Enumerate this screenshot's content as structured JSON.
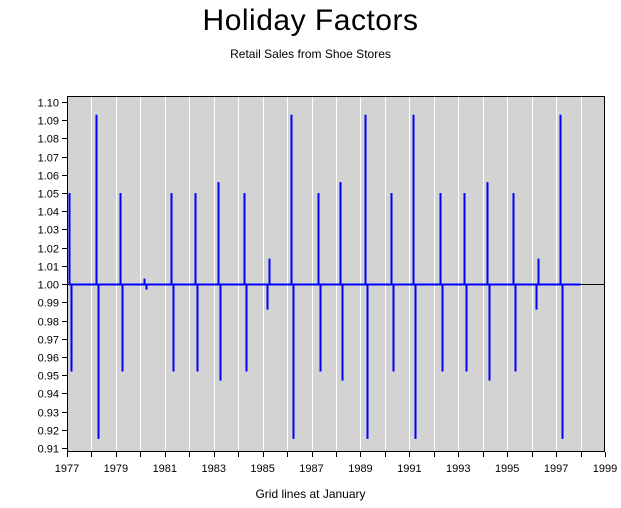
{
  "chart_data": {
    "type": "bar",
    "title": "Holiday Factors",
    "subtitle": "Retail Sales from Shoe Stores",
    "xlabel": "Grid lines at January",
    "ylabel": "",
    "xlim": [
      1977,
      1999
    ],
    "ylim": [
      0.91,
      1.1
    ],
    "reference_line": 1.0,
    "grid": true,
    "x_ticks": [
      "1977",
      "1979",
      "1981",
      "1983",
      "1985",
      "1987",
      "1989",
      "1991",
      "1993",
      "1995",
      "1997",
      "1999"
    ],
    "y_ticks": [
      "0.91",
      "0.92",
      "0.93",
      "0.94",
      "0.95",
      "0.96",
      "0.97",
      "0.98",
      "0.99",
      "1.00",
      "1.01",
      "1.02",
      "1.03",
      "1.04",
      "1.05",
      "1.06",
      "1.07",
      "1.08",
      "1.09",
      "1.10"
    ],
    "colors": {
      "series": "#0000ff",
      "plot_bg": "#d3d3d3",
      "grid": "#ffffff",
      "reference": "#000000"
    },
    "series": [
      {
        "values": [
          {
            "x": "1977-02",
            "y": 1.05
          },
          {
            "x": "1977-03",
            "y": 0.952
          },
          {
            "x": "1978-03",
            "y": 1.093
          },
          {
            "x": "1978-04",
            "y": 0.915
          },
          {
            "x": "1979-03",
            "y": 1.05
          },
          {
            "x": "1979-04",
            "y": 0.952
          },
          {
            "x": "1980-03",
            "y": 1.003
          },
          {
            "x": "1980-04",
            "y": 0.997
          },
          {
            "x": "1981-04",
            "y": 1.05
          },
          {
            "x": "1981-05",
            "y": 0.952
          },
          {
            "x": "1982-04",
            "y": 1.05
          },
          {
            "x": "1982-05",
            "y": 0.952
          },
          {
            "x": "1983-03",
            "y": 1.056
          },
          {
            "x": "1983-04",
            "y": 0.947
          },
          {
            "x": "1984-04",
            "y": 1.05
          },
          {
            "x": "1984-05",
            "y": 0.952
          },
          {
            "x": "1985-03",
            "y": 0.986
          },
          {
            "x": "1985-04",
            "y": 1.014
          },
          {
            "x": "1986-03",
            "y": 1.093
          },
          {
            "x": "1986-04",
            "y": 0.915
          },
          {
            "x": "1987-04",
            "y": 1.05
          },
          {
            "x": "1987-05",
            "y": 0.952
          },
          {
            "x": "1988-03",
            "y": 1.056
          },
          {
            "x": "1988-04",
            "y": 0.947
          },
          {
            "x": "1989-03",
            "y": 1.093
          },
          {
            "x": "1989-04",
            "y": 0.915
          },
          {
            "x": "1990-04",
            "y": 1.05
          },
          {
            "x": "1990-05",
            "y": 0.952
          },
          {
            "x": "1991-03",
            "y": 1.093
          },
          {
            "x": "1991-04",
            "y": 0.915
          },
          {
            "x": "1992-04",
            "y": 1.05
          },
          {
            "x": "1992-05",
            "y": 0.952
          },
          {
            "x": "1993-04",
            "y": 1.05
          },
          {
            "x": "1993-05",
            "y": 0.952
          },
          {
            "x": "1994-03",
            "y": 1.056
          },
          {
            "x": "1994-04",
            "y": 0.947
          },
          {
            "x": "1995-04",
            "y": 1.05
          },
          {
            "x": "1995-05",
            "y": 0.952
          },
          {
            "x": "1996-03",
            "y": 0.986
          },
          {
            "x": "1996-04",
            "y": 1.014
          },
          {
            "x": "1997-03",
            "y": 1.093
          },
          {
            "x": "1997-04",
            "y": 0.915
          }
        ],
        "baseline_end": "1998-01"
      }
    ]
  }
}
